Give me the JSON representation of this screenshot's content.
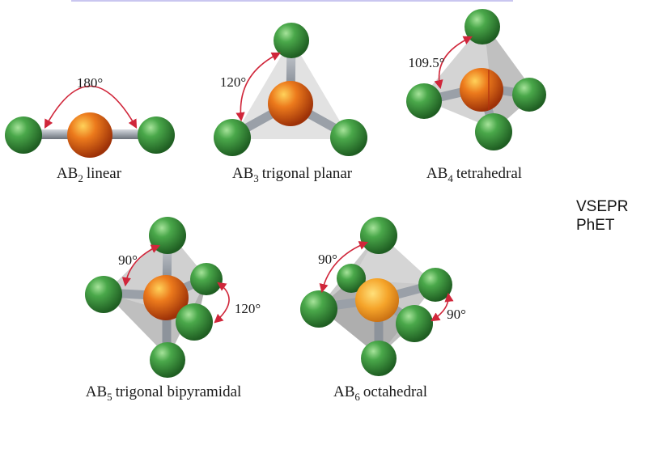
{
  "colors": {
    "ligand": "#3c9a3c",
    "central": "#e0701c",
    "central_light": "#f5a42a",
    "bond": "#9aa0a8",
    "angle_arrow": "#d0263a",
    "shadow": "#cfcfcf"
  },
  "geometries": [
    {
      "id": "linear",
      "formula_base": "AB",
      "subscript": "2",
      "name": "linear",
      "angle": "180°"
    },
    {
      "id": "trigonal-planar",
      "formula_base": "AB",
      "subscript": "3",
      "name": "trigonal planar",
      "angle": "120°"
    },
    {
      "id": "tetrahedral",
      "formula_base": "AB",
      "subscript": "4",
      "name": "tetrahedral",
      "angle": "109.5°"
    },
    {
      "id": "trigonal-bipyramidal",
      "formula_base": "AB",
      "subscript": "5",
      "name": "trigonal bipyramidal",
      "angle_axial": "90°",
      "angle_equatorial": "120°"
    },
    {
      "id": "octahedral",
      "formula_base": "AB",
      "subscript": "6",
      "name": "octahedral",
      "angle_a": "90°",
      "angle_b": "90°"
    }
  ],
  "sidebar": {
    "line1": "VSEPR",
    "line2": "PhET"
  }
}
